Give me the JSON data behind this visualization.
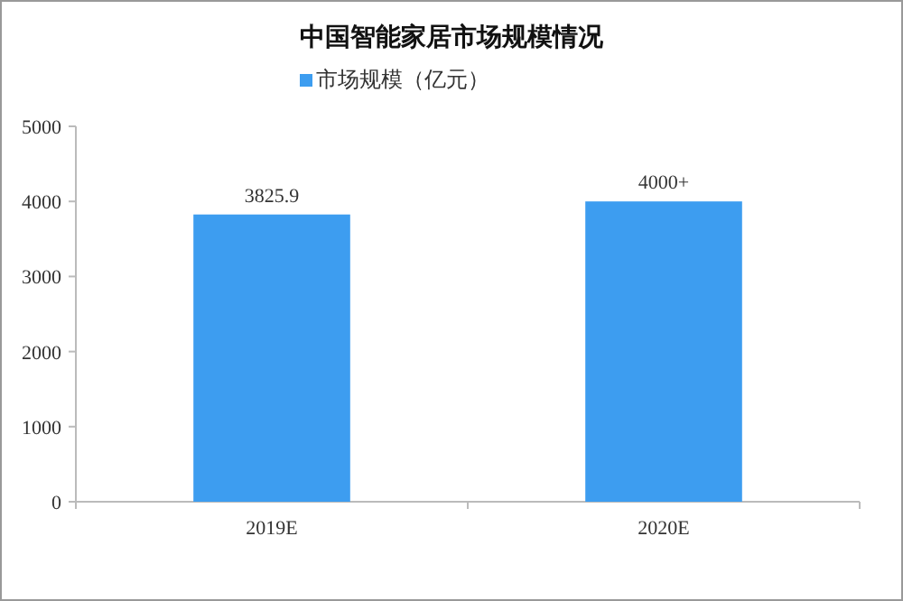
{
  "chart_data": {
    "type": "bar",
    "title": "中国智能家居市场规模情况",
    "categories": [
      "2019E",
      "2020E"
    ],
    "series": [
      {
        "name": "市场规模（亿元）",
        "color": "#3d9df0",
        "values": [
          3825.9,
          4000
        ],
        "value_labels": [
          "3825.9",
          "4000+"
        ]
      }
    ],
    "ylim": [
      0,
      5000
    ],
    "yticks": [
      0,
      1000,
      2000,
      3000,
      4000,
      5000
    ],
    "grid": false,
    "legend": "top"
  }
}
